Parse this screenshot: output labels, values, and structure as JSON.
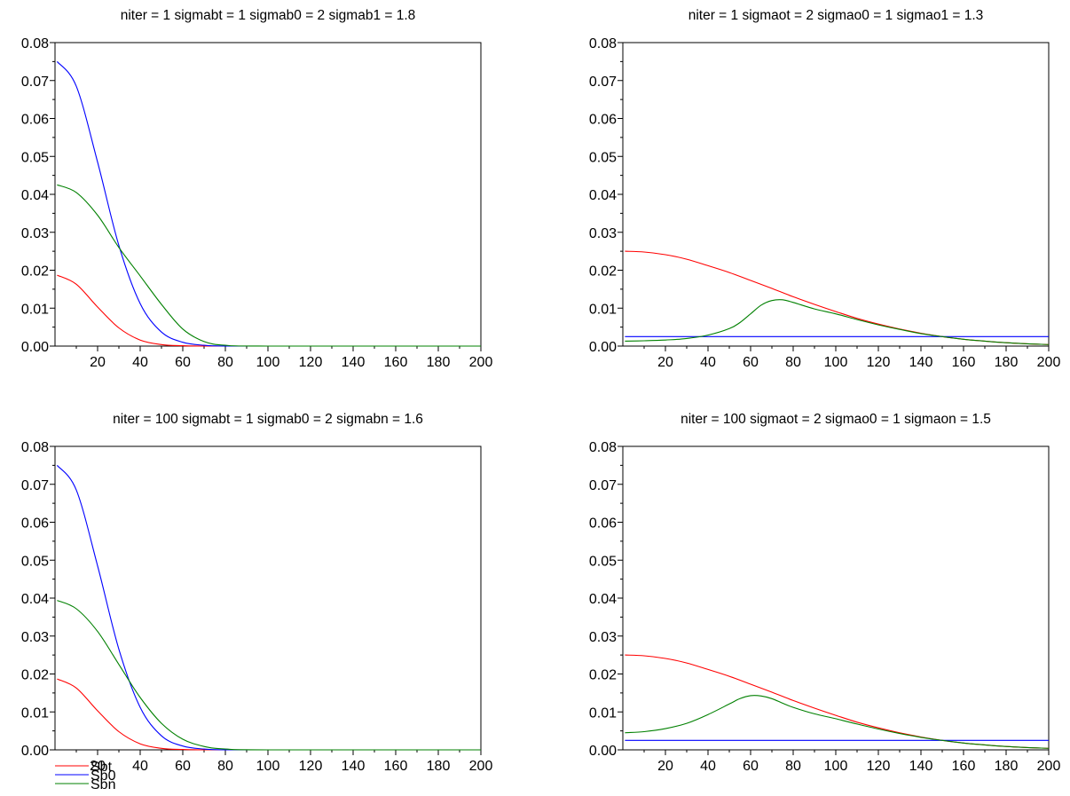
{
  "chart_data": [
    {
      "type": "line",
      "title": "niter = 1 sigmabt = 1 sigmab0 = 2 sigmab1 = 1.8",
      "xlim": [
        0,
        200
      ],
      "ylim": [
        0,
        0.08
      ],
      "xticks": [
        "20",
        "40",
        "60",
        "80",
        "100",
        "120",
        "140",
        "160",
        "180",
        "200"
      ],
      "yticks": [
        "0.00",
        "0.01",
        "0.02",
        "0.03",
        "0.04",
        "0.05",
        "0.06",
        "0.07",
        "0.08"
      ],
      "series": [
        {
          "color": "#ff0000",
          "x": [
            1,
            10,
            20,
            30,
            40,
            50,
            60,
            70,
            80,
            100,
            200
          ],
          "values": [
            0.0187,
            0.0163,
            0.0103,
            0.0048,
            0.0016,
            0.0004,
            0.0001,
            0.0,
            0.0,
            0.0,
            0.0
          ]
        },
        {
          "color": "#0000ff",
          "x": [
            1,
            10,
            20,
            30,
            40,
            50,
            60,
            70,
            80,
            100,
            200
          ],
          "values": [
            0.075,
            0.0685,
            0.0485,
            0.0265,
            0.0112,
            0.0037,
            0.001,
            0.0002,
            0.0,
            0.0,
            0.0
          ]
        },
        {
          "color": "#008000",
          "x": [
            1,
            10,
            20,
            30,
            40,
            50,
            60,
            70,
            80,
            100,
            200
          ],
          "values": [
            0.0425,
            0.0405,
            0.0345,
            0.026,
            0.0185,
            0.011,
            0.0045,
            0.0012,
            0.0002,
            0.0,
            0.0
          ]
        }
      ]
    },
    {
      "type": "line",
      "title": "niter = 1 sigmaot = 2 sigmao0 = 1 sigmao1 = 1.3",
      "xlim": [
        0,
        200
      ],
      "ylim": [
        0,
        0.08
      ],
      "xticks": [
        "20",
        "40",
        "60",
        "80",
        "100",
        "120",
        "140",
        "160",
        "180",
        "200"
      ],
      "yticks": [
        "0.00",
        "0.01",
        "0.02",
        "0.03",
        "0.04",
        "0.05",
        "0.06",
        "0.07",
        "0.08"
      ],
      "series": [
        {
          "color": "#ff0000",
          "x": [
            1,
            10,
            20,
            30,
            40,
            50,
            60,
            70,
            80,
            90,
            100,
            110,
            120,
            130,
            140,
            150,
            160,
            170,
            180,
            190,
            200
          ],
          "values": [
            0.025,
            0.0248,
            0.0241,
            0.0229,
            0.0212,
            0.0194,
            0.0173,
            0.0152,
            0.013,
            0.011,
            0.0091,
            0.0073,
            0.0058,
            0.0045,
            0.0034,
            0.0025,
            0.0018,
            0.0013,
            0.0009,
            0.0006,
            0.0004
          ]
        },
        {
          "color": "#0000ff",
          "x": [
            1,
            200
          ],
          "values": [
            0.0025,
            0.0025
          ]
        },
        {
          "color": "#008000",
          "x": [
            1,
            10,
            20,
            30,
            40,
            50,
            55,
            60,
            65,
            70,
            75,
            80,
            90,
            100,
            110,
            120,
            130,
            140,
            150,
            160,
            170,
            180,
            190,
            200
          ],
          "values": [
            0.0013,
            0.0014,
            0.0016,
            0.002,
            0.0029,
            0.0046,
            0.0062,
            0.0085,
            0.0108,
            0.012,
            0.0122,
            0.0115,
            0.0098,
            0.0085,
            0.007,
            0.0056,
            0.0044,
            0.0033,
            0.0025,
            0.0018,
            0.0013,
            0.0009,
            0.0006,
            0.0004
          ]
        }
      ]
    },
    {
      "type": "line",
      "title": "niter = 100 sigmabt = 1 sigmab0 = 2 sigmabn = 1.6",
      "xlim": [
        0,
        200
      ],
      "ylim": [
        0,
        0.08
      ],
      "xticks": [
        "20",
        "40",
        "60",
        "80",
        "100",
        "120",
        "140",
        "160",
        "180",
        "200"
      ],
      "yticks": [
        "0.00",
        "0.01",
        "0.02",
        "0.03",
        "0.04",
        "0.05",
        "0.06",
        "0.07",
        "0.08"
      ],
      "legend": {
        "position": "bottom-left",
        "entries": [
          {
            "name": "Sbt",
            "color": "#ff0000"
          },
          {
            "name": "Sb0",
            "color": "#0000ff"
          },
          {
            "name": "Sbn",
            "color": "#008000"
          }
        ]
      },
      "series": [
        {
          "name": "Sbt",
          "color": "#ff0000",
          "x": [
            1,
            10,
            20,
            30,
            40,
            50,
            60,
            70,
            80,
            100,
            200
          ],
          "values": [
            0.0187,
            0.0163,
            0.0103,
            0.0048,
            0.0016,
            0.0004,
            0.0001,
            0.0,
            0.0,
            0.0,
            0.0
          ]
        },
        {
          "name": "Sb0",
          "color": "#0000ff",
          "x": [
            1,
            10,
            20,
            30,
            40,
            50,
            60,
            70,
            80,
            100,
            200
          ],
          "values": [
            0.075,
            0.0685,
            0.0485,
            0.0265,
            0.0112,
            0.0037,
            0.001,
            0.0002,
            0.0,
            0.0,
            0.0
          ]
        },
        {
          "name": "Sbn",
          "color": "#008000",
          "x": [
            1,
            10,
            20,
            30,
            40,
            50,
            60,
            70,
            80,
            100,
            200
          ],
          "values": [
            0.0394,
            0.0372,
            0.0312,
            0.0225,
            0.0138,
            0.007,
            0.0028,
            0.0009,
            0.0002,
            0.0,
            0.0
          ]
        }
      ]
    },
    {
      "type": "line",
      "title": "niter = 100 sigmaot = 2 sigmao0 = 1 sigmaon = 1.5",
      "xlim": [
        0,
        200
      ],
      "ylim": [
        0,
        0.08
      ],
      "xticks": [
        "20",
        "40",
        "60",
        "80",
        "100",
        "120",
        "140",
        "160",
        "180",
        "200"
      ],
      "yticks": [
        "0.00",
        "0.01",
        "0.02",
        "0.03",
        "0.04",
        "0.05",
        "0.06",
        "0.07",
        "0.08"
      ],
      "series": [
        {
          "color": "#ff0000",
          "x": [
            1,
            10,
            20,
            30,
            40,
            50,
            60,
            70,
            80,
            90,
            100,
            110,
            120,
            130,
            140,
            150,
            160,
            170,
            180,
            190,
            200
          ],
          "values": [
            0.025,
            0.0248,
            0.0241,
            0.0229,
            0.0212,
            0.0194,
            0.0173,
            0.0152,
            0.013,
            0.011,
            0.0091,
            0.0073,
            0.0058,
            0.0045,
            0.0034,
            0.0025,
            0.0018,
            0.0013,
            0.0009,
            0.0006,
            0.0004
          ]
        },
        {
          "color": "#0000ff",
          "x": [
            1,
            200
          ],
          "values": [
            0.0025,
            0.0025
          ]
        },
        {
          "color": "#008000",
          "x": [
            1,
            10,
            20,
            30,
            40,
            50,
            55,
            60,
            65,
            70,
            75,
            80,
            90,
            100,
            110,
            120,
            130,
            140,
            150,
            160,
            170,
            180,
            190,
            200
          ],
          "values": [
            0.0045,
            0.0048,
            0.0056,
            0.007,
            0.0093,
            0.0121,
            0.0135,
            0.0143,
            0.0142,
            0.0135,
            0.0123,
            0.0112,
            0.0095,
            0.0082,
            0.0068,
            0.0055,
            0.0043,
            0.0033,
            0.0025,
            0.0018,
            0.0013,
            0.0009,
            0.0006,
            0.0004
          ]
        }
      ]
    }
  ]
}
